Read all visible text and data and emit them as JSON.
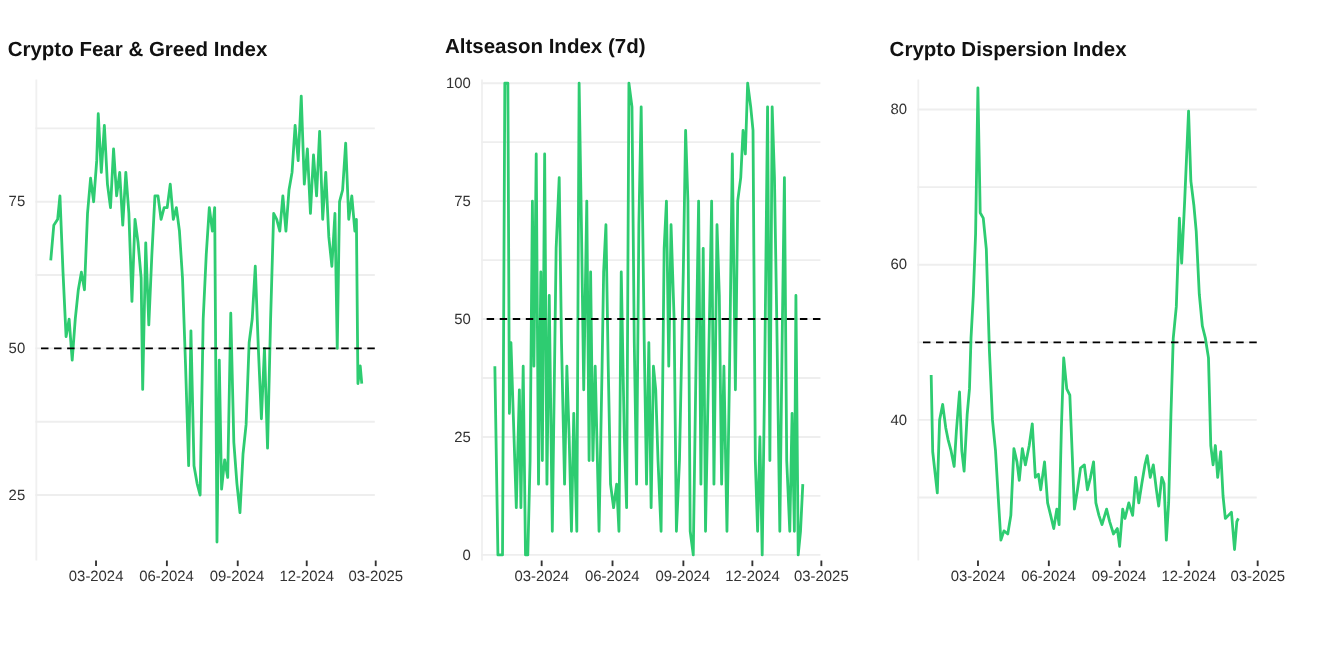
{
  "chart_data": [
    {
      "type": "line",
      "title": "Crypto Fear & Greed Index",
      "xlim": [
        "2023-12-14",
        "2025-03-01"
      ],
      "xticks": [
        {
          "value": "2024-03-01",
          "label": "03-2024"
        },
        {
          "value": "2024-06-01",
          "label": "06-2024"
        },
        {
          "value": "2024-09-01",
          "label": "09-2024"
        },
        {
          "value": "2024-12-01",
          "label": "12-2024"
        },
        {
          "value": "2025-03-01",
          "label": "03-2025"
        }
      ],
      "ylim": [
        14,
        96
      ],
      "yticks": [
        25,
        {
          "value": 37.5,
          "label": null
        },
        50,
        {
          "value": 62.5,
          "label": null
        },
        75,
        {
          "value": 87.5,
          "label": null
        }
      ],
      "grid": "y",
      "ref_lines": [
        {
          "axis": "y",
          "value": 50,
          "color": "#000000",
          "line_style": "dashed"
        }
      ],
      "x": [
        "2024-01-03",
        "2024-01-07",
        "2024-01-12",
        "2024-01-15",
        "2024-01-19",
        "2024-01-23",
        "2024-01-27",
        "2024-01-31",
        "2024-02-04",
        "2024-02-08",
        "2024-02-12",
        "2024-02-16",
        "2024-02-20",
        "2024-02-24",
        "2024-02-28",
        "2024-03-03",
        "2024-03-05",
        "2024-03-09",
        "2024-03-13",
        "2024-03-17",
        "2024-03-21",
        "2024-03-25",
        "2024-03-29",
        "2024-04-02",
        "2024-04-06",
        "2024-04-10",
        "2024-04-14",
        "2024-04-18",
        "2024-04-22",
        "2024-04-26",
        "2024-04-30",
        "2024-05-02",
        "2024-05-06",
        "2024-05-10",
        "2024-05-14",
        "2024-05-18",
        "2024-05-22",
        "2024-05-26",
        "2024-05-30",
        "2024-06-03",
        "2024-06-07",
        "2024-06-11",
        "2024-06-15",
        "2024-06-19",
        "2024-06-23",
        "2024-06-27",
        "2024-07-01",
        "2024-07-04",
        "2024-07-08",
        "2024-07-12",
        "2024-07-16",
        "2024-07-20",
        "2024-07-24",
        "2024-07-28",
        "2024-08-01",
        "2024-08-04",
        "2024-08-07",
        "2024-08-10",
        "2024-08-13",
        "2024-08-17",
        "2024-08-21",
        "2024-08-25",
        "2024-08-29",
        "2024-09-02",
        "2024-09-06",
        "2024-09-10",
        "2024-09-14",
        "2024-09-18",
        "2024-09-22",
        "2024-09-26",
        "2024-09-30",
        "2024-10-04",
        "2024-10-08",
        "2024-10-12",
        "2024-10-16",
        "2024-10-20",
        "2024-10-24",
        "2024-10-28",
        "2024-11-01",
        "2024-11-05",
        "2024-11-09",
        "2024-11-13",
        "2024-11-17",
        "2024-11-21",
        "2024-11-25",
        "2024-11-29",
        "2024-12-03",
        "2024-12-07",
        "2024-12-11",
        "2024-12-15",
        "2024-12-19",
        "2024-12-23",
        "2024-12-27",
        "2024-12-31",
        "2025-01-04",
        "2025-01-08",
        "2025-01-11",
        "2025-01-14",
        "2025-01-18",
        "2025-01-22",
        "2025-01-26",
        "2025-01-30",
        "2025-02-03",
        "2025-02-05",
        "2025-02-07",
        "2025-02-10",
        "2025-02-12"
      ],
      "series": [
        {
          "color": "#2ecc71",
          "values": [
            65,
            71,
            72,
            76,
            63,
            52,
            55,
            48,
            55,
            60,
            63,
            60,
            73,
            79,
            75,
            82,
            90,
            80,
            88,
            78,
            74,
            84,
            76,
            80,
            71,
            80,
            73,
            58,
            72,
            68,
            62,
            43,
            68,
            54,
            66,
            76,
            76,
            72,
            74,
            74,
            78,
            72,
            74,
            70,
            62,
            47,
            30,
            53,
            30,
            27,
            25,
            55,
            66,
            74,
            70,
            74,
            17,
            48,
            26,
            31,
            28,
            56,
            34,
            27,
            22,
            32,
            37,
            51,
            55,
            64,
            50,
            38,
            50,
            33,
            55,
            73,
            72,
            70,
            76,
            70,
            77,
            80,
            88,
            82,
            93,
            78,
            84,
            73,
            83,
            76,
            87,
            72,
            80,
            69,
            64,
            73,
            50,
            75,
            77,
            85,
            72,
            76,
            70,
            72,
            44,
            47,
            44
          ]
        }
      ]
    },
    {
      "type": "line",
      "title": "Altseason Index (7d)",
      "xlim": [
        "2023-12-14",
        "2025-03-01"
      ],
      "xticks": [
        {
          "value": "2024-03-01",
          "label": "03-2024"
        },
        {
          "value": "2024-06-01",
          "label": "06-2024"
        },
        {
          "value": "2024-09-01",
          "label": "09-2024"
        },
        {
          "value": "2024-12-01",
          "label": "12-2024"
        },
        {
          "value": "2025-03-01",
          "label": "03-2025"
        }
      ],
      "ylim": [
        -1,
        101
      ],
      "yticks": [
        0,
        {
          "value": 12.5,
          "label": null
        },
        25,
        {
          "value": 37.5,
          "label": null
        },
        50,
        {
          "value": 62.5,
          "label": null
        },
        75,
        {
          "value": 87.5,
          "label": null
        },
        100
      ],
      "grid": "y",
      "ref_lines": [
        {
          "axis": "y",
          "value": 50,
          "color": "#000000",
          "line_style": "dashed"
        }
      ],
      "x": [
        "2024-01-01",
        "2024-01-05",
        "2024-01-11",
        "2024-01-14",
        "2024-01-18",
        "2024-01-20",
        "2024-01-22",
        "2024-01-25",
        "2024-01-29",
        "2024-02-02",
        "2024-02-04",
        "2024-02-07",
        "2024-02-10",
        "2024-02-13",
        "2024-02-16",
        "2024-02-19",
        "2024-02-21",
        "2024-02-24",
        "2024-02-27",
        "2024-03-01",
        "2024-03-03",
        "2024-03-06",
        "2024-03-09",
        "2024-03-12",
        "2024-03-16",
        "2024-03-21",
        "2024-03-25",
        "2024-03-28",
        "2024-04-01",
        "2024-04-04",
        "2024-04-07",
        "2024-04-10",
        "2024-04-13",
        "2024-04-17",
        "2024-04-20",
        "2024-04-23",
        "2024-04-26",
        "2024-04-30",
        "2024-05-03",
        "2024-05-05",
        "2024-05-08",
        "2024-05-11",
        "2024-05-16",
        "2024-05-20",
        "2024-05-22",
        "2024-05-25",
        "2024-05-28",
        "2024-05-31",
        "2024-06-04",
        "2024-06-08",
        "2024-06-11",
        "2024-06-14",
        "2024-06-18",
        "2024-06-21",
        "2024-06-24",
        "2024-06-28",
        "2024-07-01",
        "2024-07-04",
        "2024-07-07",
        "2024-07-10",
        "2024-07-14",
        "2024-07-17",
        "2024-07-20",
        "2024-07-23",
        "2024-07-26",
        "2024-07-29",
        "2024-08-01",
        "2024-08-05",
        "2024-08-09",
        "2024-08-12",
        "2024-08-15",
        "2024-08-18",
        "2024-08-22",
        "2024-08-25",
        "2024-08-29",
        "2024-09-03",
        "2024-09-06",
        "2024-09-09",
        "2024-09-12",
        "2024-09-16",
        "2024-09-20",
        "2024-09-23",
        "2024-09-26",
        "2024-09-29",
        "2024-10-02",
        "2024-10-06",
        "2024-10-10",
        "2024-10-13",
        "2024-10-17",
        "2024-10-20",
        "2024-10-23",
        "2024-10-26",
        "2024-10-30",
        "2024-11-02",
        "2024-11-06",
        "2024-11-10",
        "2024-11-13",
        "2024-11-17",
        "2024-11-20",
        "2024-11-23",
        "2024-11-26",
        "2024-11-30",
        "2024-12-03",
        "2024-12-06",
        "2024-12-09",
        "2024-12-12",
        "2024-12-15",
        "2024-12-18",
        "2024-12-22",
        "2024-12-25",
        "2024-12-28",
        "2024-12-31",
        "2025-01-03",
        "2025-01-07",
        "2025-01-10",
        "2025-01-13",
        "2025-01-16",
        "2025-01-20",
        "2025-01-23",
        "2025-01-26",
        "2025-01-28",
        "2025-01-31",
        "2025-02-03",
        "2025-02-06"
      ],
      "series": [
        {
          "color": "#2ecc71",
          "values": [
            40,
            0,
            0,
            100,
            100,
            30,
            45,
            30,
            10,
            35,
            10,
            40,
            0,
            0,
            20,
            75,
            40,
            85,
            15,
            60,
            20,
            85,
            15,
            55,
            5,
            65,
            80,
            45,
            15,
            40,
            25,
            5,
            30,
            5,
            100,
            70,
            35,
            75,
            20,
            60,
            20,
            40,
            5,
            40,
            60,
            70,
            40,
            15,
            10,
            15,
            5,
            60,
            25,
            10,
            100,
            95,
            45,
            15,
            70,
            95,
            45,
            15,
            45,
            10,
            40,
            35,
            20,
            5,
            65,
            75,
            40,
            70,
            50,
            5,
            20,
            60,
            90,
            75,
            5,
            0,
            45,
            75,
            15,
            65,
            5,
            40,
            75,
            15,
            70,
            55,
            15,
            40,
            5,
            35,
            85,
            35,
            75,
            80,
            90,
            85,
            100,
            95,
            90,
            20,
            5,
            25,
            0,
            35,
            95,
            20,
            95,
            80,
            50,
            5,
            45,
            80,
            20,
            5,
            30,
            5,
            55,
            0,
            5,
            15
          ]
        }
      ]
    },
    {
      "type": "line",
      "title": "Crypto Dispersion Index",
      "xlim": [
        "2023-12-14",
        "2025-03-01"
      ],
      "xticks": [
        {
          "value": "2024-03-01",
          "label": "03-2024"
        },
        {
          "value": "2024-06-01",
          "label": "06-2024"
        },
        {
          "value": "2024-09-01",
          "label": "09-2024"
        },
        {
          "value": "2024-12-01",
          "label": "12-2024"
        },
        {
          "value": "2025-03-01",
          "label": "03-2025"
        }
      ],
      "ylim": [
        22,
        84
      ],
      "yticks": [
        {
          "value": 30,
          "label": null
        },
        40,
        {
          "value": 50,
          "label": null
        },
        60,
        {
          "value": 70,
          "label": null
        },
        80
      ],
      "grid": "y",
      "ref_lines": [
        {
          "axis": "y",
          "value": 50,
          "color": "#000000",
          "line_style": "dashed"
        }
      ],
      "x": [
        "2024-01-01",
        "2024-01-03",
        "2024-01-09",
        "2024-01-12",
        "2024-01-16",
        "2024-01-20",
        "2024-01-23",
        "2024-01-27",
        "2024-01-31",
        "2024-02-03",
        "2024-02-07",
        "2024-02-10",
        "2024-02-13",
        "2024-02-17",
        "2024-02-20",
        "2024-02-22",
        "2024-02-25",
        "2024-02-28",
        "2024-03-02",
        "2024-03-05",
        "2024-03-09",
        "2024-03-13",
        "2024-03-17",
        "2024-03-21",
        "2024-03-25",
        "2024-03-29",
        "2024-04-01",
        "2024-04-05",
        "2024-04-10",
        "2024-04-14",
        "2024-04-18",
        "2024-04-22",
        "2024-04-25",
        "2024-04-29",
        "2024-05-03",
        "2024-05-08",
        "2024-05-12",
        "2024-05-16",
        "2024-05-20",
        "2024-05-23",
        "2024-05-28",
        "2024-06-01",
        "2024-06-05",
        "2024-06-09",
        "2024-06-13",
        "2024-06-16",
        "2024-06-19",
        "2024-06-22",
        "2024-06-26",
        "2024-06-30",
        "2024-07-03",
        "2024-07-06",
        "2024-07-10",
        "2024-07-14",
        "2024-07-19",
        "2024-07-23",
        "2024-07-27",
        "2024-07-31",
        "2024-08-03",
        "2024-08-07",
        "2024-08-11",
        "2024-08-17",
        "2024-08-21",
        "2024-08-26",
        "2024-08-31",
        "2024-09-03",
        "2024-09-07",
        "2024-09-10",
        "2024-09-15",
        "2024-09-20",
        "2024-09-24",
        "2024-09-28",
        "2024-10-02",
        "2024-10-06",
        "2024-10-09",
        "2024-10-13",
        "2024-10-17",
        "2024-10-21",
        "2024-10-24",
        "2024-10-28",
        "2024-10-31",
        "2024-11-03",
        "2024-11-06",
        "2024-11-09",
        "2024-11-12",
        "2024-11-16",
        "2024-11-20",
        "2024-11-23",
        "2024-11-27",
        "2024-12-02",
        "2024-12-05",
        "2024-12-09",
        "2024-12-12",
        "2024-12-16",
        "2024-12-20",
        "2024-12-24",
        "2024-12-28",
        "2024-12-31",
        "2025-01-03",
        "2025-01-06",
        "2025-01-09",
        "2025-01-13",
        "2025-01-16",
        "2025-01-19",
        "2025-01-23",
        "2025-01-27",
        "2025-01-31",
        "2025-02-03",
        "2025-02-05"
      ],
      "series": [
        {
          "color": "#2ecc71",
          "values": [
            45.8,
            35.9,
            30.6,
            40,
            42,
            39,
            37.5,
            36,
            34,
            38.7,
            43.6,
            36,
            33.4,
            40.7,
            44,
            50.5,
            56,
            64,
            82.8,
            66.7,
            66,
            62,
            49,
            40,
            36,
            29.3,
            24.5,
            25.7,
            25.3,
            27.7,
            36.3,
            34.6,
            32.2,
            36.3,
            34.2,
            36.7,
            39.5,
            32.6,
            33,
            31,
            34.6,
            29.3,
            27.7,
            26,
            28.5,
            26.5,
            39,
            48,
            44,
            43.2,
            35.9,
            28.5,
            31,
            33.8,
            34.2,
            31,
            32.6,
            34.6,
            29.3,
            27.7,
            26.5,
            28.5,
            26.9,
            25.3,
            26,
            23.7,
            28.5,
            27.3,
            29.3,
            27.7,
            32.6,
            29.3,
            31.8,
            34.2,
            35.4,
            32.6,
            34.2,
            31,
            28.9,
            32.6,
            31.8,
            24.5,
            29.3,
            40.7,
            50.5,
            54.6,
            66,
            60.2,
            68.4,
            79.8,
            70.8,
            67.6,
            64.3,
            56.2,
            52.1,
            50.5,
            48,
            36.7,
            34.2,
            36.7,
            32.6,
            35.9,
            30.2,
            27.3,
            27.7,
            28.1,
            23.3,
            26.9,
            27.3
          ]
        }
      ]
    }
  ]
}
